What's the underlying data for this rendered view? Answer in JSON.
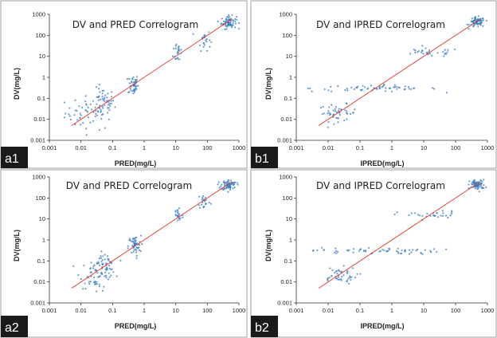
{
  "chart_data": [
    {
      "id": "a1",
      "panel_label": "a1",
      "type": "scatter",
      "title": "DV and PRED Correlogram",
      "xlabel": "PRED(mg/L)",
      "ylabel": "DV(mg/L)",
      "xscale": "log",
      "yscale": "log",
      "xlim": [
        0.001,
        1000
      ],
      "ylim": [
        0.001,
        1000
      ],
      "xticks": [
        "0.001",
        "0.01",
        "0.1",
        "1",
        "10",
        "100",
        "1000"
      ],
      "yticks": [
        "0.001",
        "0.01",
        "0.1",
        "1",
        "10",
        "100",
        "1000"
      ],
      "grid": false,
      "point_color": "#3a7bbf",
      "line_color": "#e0392b",
      "line": {
        "x": [
          0.005,
          600
        ],
        "y": [
          0.005,
          600
        ]
      },
      "clusters": [
        {
          "x": 0.02,
          "y": 0.02,
          "n": 55,
          "sx": 0.4,
          "sy": 0.4
        },
        {
          "x": 0.05,
          "y": 0.06,
          "n": 45,
          "sx": 0.18,
          "sy": 0.35
        },
        {
          "x": 0.45,
          "y": 0.45,
          "n": 45,
          "sx": 0.08,
          "sy": 0.25
        },
        {
          "x": 12,
          "y": 18,
          "n": 22,
          "sx": 0.08,
          "sy": 0.3
        },
        {
          "x": 80,
          "y": 60,
          "n": 22,
          "sx": 0.1,
          "sy": 0.25
        },
        {
          "x": 480,
          "y": 420,
          "n": 70,
          "sx": 0.12,
          "sy": 0.15
        }
      ]
    },
    {
      "id": "b1",
      "panel_label": "b1",
      "type": "scatter",
      "title": "DV and IPRED Correlogram",
      "xlabel": "IPRED(mg/L)",
      "ylabel": "DV(mg/L)",
      "xscale": "log",
      "yscale": "log",
      "xlim": [
        0.001,
        1000
      ],
      "ylim": [
        0.001,
        1000
      ],
      "xticks": [
        "0.001",
        "0.01",
        "0.1",
        "1",
        "10",
        "100",
        "1000"
      ],
      "yticks": [
        "0.001",
        "0.01",
        "0.1",
        "1",
        "10",
        "100",
        "1000"
      ],
      "grid": false,
      "point_color": "#3a7bbf",
      "line_color": "#e0392b",
      "line": {
        "x": [
          0.005,
          600
        ],
        "y": [
          0.005,
          600
        ]
      },
      "clusters": [
        {
          "x": 0.02,
          "y": 0.02,
          "n": 45,
          "sx": 0.3,
          "sy": 0.2
        },
        {
          "x": 0.3,
          "y": 0.3,
          "n": 60,
          "sx": 1.0,
          "sy": 0.08
        },
        {
          "x": 15,
          "y": 15,
          "n": 30,
          "sx": 0.5,
          "sy": 0.1
        },
        {
          "x": 480,
          "y": 420,
          "n": 70,
          "sx": 0.12,
          "sy": 0.12
        }
      ]
    },
    {
      "id": "a2",
      "panel_label": "a2",
      "type": "scatter",
      "title": "DV and PRED Correlogram",
      "xlabel": "PRED(mg/L)",
      "ylabel": "DV(mg/L)",
      "xscale": "log",
      "yscale": "log",
      "xlim": [
        0.001,
        1000
      ],
      "ylim": [
        0.001,
        1000
      ],
      "xticks": [
        "0.001",
        "0.01",
        "0.1",
        "1",
        "10",
        "100",
        "1000"
      ],
      "yticks": [
        "0.001",
        "0.01",
        "0.1",
        "1",
        "10",
        "100",
        "1000"
      ],
      "grid": false,
      "point_color": "#3a7bbf",
      "line_color": "#e0392b",
      "line": {
        "x": [
          0.005,
          600
        ],
        "y": [
          0.005,
          600
        ]
      },
      "clusters": [
        {
          "x": 0.03,
          "y": 0.025,
          "n": 55,
          "sx": 0.25,
          "sy": 0.35
        },
        {
          "x": 0.06,
          "y": 0.06,
          "n": 40,
          "sx": 0.15,
          "sy": 0.3
        },
        {
          "x": 0.5,
          "y": 0.5,
          "n": 50,
          "sx": 0.1,
          "sy": 0.25
        },
        {
          "x": 12,
          "y": 15,
          "n": 22,
          "sx": 0.08,
          "sy": 0.25
        },
        {
          "x": 80,
          "y": 70,
          "n": 22,
          "sx": 0.1,
          "sy": 0.2
        },
        {
          "x": 480,
          "y": 420,
          "n": 70,
          "sx": 0.12,
          "sy": 0.12
        }
      ]
    },
    {
      "id": "b2",
      "panel_label": "b2",
      "type": "scatter",
      "title": "DV and IPRED Correlogram",
      "xlabel": "IPRED(mg/L)",
      "ylabel": "DV(mg/L)",
      "xscale": "log",
      "yscale": "log",
      "xlim": [
        0.001,
        1000
      ],
      "ylim": [
        0.001,
        1000
      ],
      "xticks": [
        "0.001",
        "0.01",
        "0.1",
        "1",
        "10",
        "100",
        "1000"
      ],
      "yticks": [
        "0.001",
        "0.01",
        "0.1",
        "1",
        "10",
        "100",
        "1000"
      ],
      "grid": false,
      "point_color": "#3a7bbf",
      "line_color": "#e0392b",
      "line": {
        "x": [
          0.005,
          600
        ],
        "y": [
          0.005,
          600
        ]
      },
      "clusters": [
        {
          "x": 0.02,
          "y": 0.02,
          "n": 45,
          "sx": 0.3,
          "sy": 0.2
        },
        {
          "x": 0.3,
          "y": 0.3,
          "n": 60,
          "sx": 1.0,
          "sy": 0.08
        },
        {
          "x": 15,
          "y": 15,
          "n": 30,
          "sx": 0.5,
          "sy": 0.1
        },
        {
          "x": 480,
          "y": 420,
          "n": 70,
          "sx": 0.12,
          "sy": 0.12
        }
      ]
    }
  ]
}
